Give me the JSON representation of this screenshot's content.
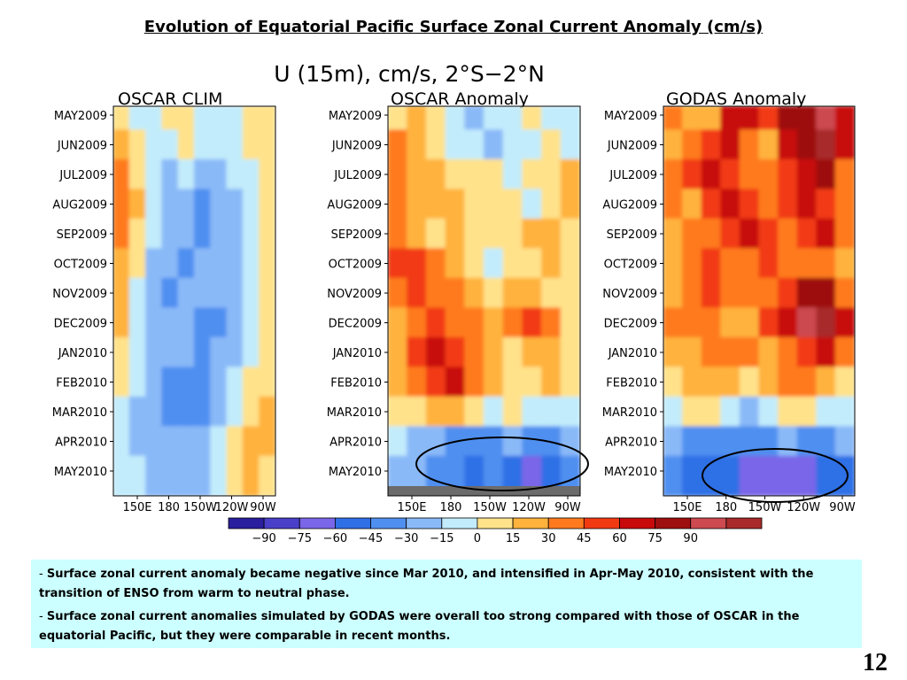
{
  "slide": {
    "title": "Evolution of Equatorial Pacific Surface Zonal Current Anomaly (cm/s)",
    "page_number": "12"
  },
  "notes": [
    {
      "dash": "- ",
      "text": "Surface zonal current anomaly became negative since Mar 2010, and intensified in Apr-May 2010, consistent with the transition of ENSO from warm to neutral phase."
    },
    {
      "dash": "- ",
      "text": "Surface zonal current anomalies simulated by GODAS were overall too strong compared with those of OSCAR in the equatorial Pacific, but they were comparable in recent months."
    }
  ],
  "chart_data": {
    "type": "heatmap",
    "title": "U (15m), cm/s, 2°S−2°N",
    "panels": [
      {
        "title": "OSCAR CLIM"
      },
      {
        "title": "OSCAR Anomaly",
        "annotation": "ellipse around Apr–May 2010 negative anomaly"
      },
      {
        "title": "GODAS Anomaly",
        "annotation": "ellipse around Apr–May 2010 negative anomaly"
      }
    ],
    "y_tick_labels": [
      "MAY2009",
      "JUN2009",
      "JUL2009",
      "AUG2009",
      "SEP2009",
      "OCT2009",
      "NOV2009",
      "DEC2009",
      "JAN2010",
      "FEB2010",
      "MAR2010",
      "APR2010",
      "MAY2010"
    ],
    "x_tick_labels": [
      "150E",
      "180",
      "150W",
      "120W",
      "90W"
    ],
    "colorbar": {
      "levels": [
        -90,
        -75,
        -60,
        -45,
        -30,
        -15,
        0,
        15,
        30,
        45,
        60,
        75,
        90
      ],
      "colors": [
        "#2a1f9e",
        "#4a3fc8",
        "#7a66e8",
        "#2f6fe6",
        "#4f8ff0",
        "#8ab9f8",
        "#c2ecfb",
        "#ffe28a",
        "#ffb23c",
        "#ff7a1f",
        "#f23a12",
        "#c80a0a",
        "#9e0f0f",
        "#cc4a50",
        "#a82a2a"
      ]
    },
    "heat_colors": {
      "-6": "#2a1f9e",
      "-5": "#4a3fc8",
      "-4": "#7a66e8",
      "-3": "#2f6fe6",
      "-2": "#4f8ff0",
      "-1": "#8ab9f8",
      "0": "#c2ecfb",
      "1": "#ffe28a",
      "2": "#ffb23c",
      "3": "#ff7a1f",
      "4": "#f23a12",
      "5": "#c80a0a",
      "6": "#9e0f0f",
      "7": "#cc4a50",
      "8": "#a82a2a"
    },
    "grid_levels": [
      [
        [
          1,
          0,
          0,
          1,
          1,
          0,
          0,
          0,
          1,
          1
        ],
        [
          2,
          1,
          0,
          0,
          1,
          0,
          0,
          0,
          1,
          1
        ],
        [
          3,
          1,
          0,
          -1,
          0,
          -1,
          -1,
          0,
          0,
          1
        ],
        [
          3,
          2,
          0,
          -1,
          -1,
          -2,
          -1,
          -1,
          0,
          1
        ],
        [
          3,
          1,
          0,
          -1,
          -1,
          -2,
          -1,
          -1,
          0,
          1
        ],
        [
          2,
          1,
          -1,
          -1,
          -2,
          -1,
          -1,
          -1,
          0,
          1
        ],
        [
          2,
          0,
          -1,
          -2,
          -1,
          -1,
          -1,
          -1,
          0,
          1
        ],
        [
          2,
          0,
          -1,
          -1,
          -1,
          -2,
          -2,
          -1,
          0,
          1
        ],
        [
          1,
          0,
          -1,
          -1,
          -1,
          -2,
          -1,
          -1,
          0,
          1
        ],
        [
          1,
          0,
          -1,
          -2,
          -2,
          -2,
          -1,
          0,
          1,
          1
        ],
        [
          0,
          -1,
          -1,
          -2,
          -2,
          -2,
          -1,
          0,
          1,
          2
        ],
        [
          0,
          -1,
          -1,
          -1,
          -1,
          -1,
          0,
          1,
          2,
          2
        ],
        [
          0,
          0,
          -1,
          -1,
          -1,
          -1,
          0,
          1,
          2,
          1
        ]
      ],
      [
        [
          1,
          2,
          1,
          0,
          -1,
          0,
          0,
          1,
          0,
          0
        ],
        [
          3,
          2,
          1,
          0,
          0,
          -1,
          0,
          0,
          1,
          0
        ],
        [
          3,
          2,
          2,
          1,
          1,
          1,
          0,
          1,
          1,
          2
        ],
        [
          3,
          2,
          2,
          2,
          1,
          1,
          1,
          0,
          1,
          2
        ],
        [
          3,
          2,
          1,
          2,
          1,
          1,
          1,
          2,
          2,
          1
        ],
        [
          4,
          4,
          3,
          2,
          1,
          0,
          1,
          1,
          2,
          1
        ],
        [
          3,
          4,
          3,
          3,
          2,
          1,
          2,
          2,
          1,
          1
        ],
        [
          2,
          3,
          4,
          3,
          3,
          2,
          3,
          4,
          3,
          1
        ],
        [
          2,
          4,
          5,
          4,
          3,
          2,
          1,
          2,
          2,
          1
        ],
        [
          2,
          3,
          4,
          5,
          3,
          2,
          1,
          1,
          2,
          1
        ],
        [
          1,
          1,
          2,
          2,
          1,
          0,
          1,
          0,
          0,
          0
        ],
        [
          0,
          -1,
          -1,
          -2,
          -2,
          -2,
          -1,
          -2,
          -2,
          -1
        ],
        [
          -1,
          -1,
          -2,
          -2,
          -3,
          -2,
          -3,
          -4,
          -3,
          -2
        ]
      ],
      [
        [
          3,
          2,
          2,
          5,
          5,
          4,
          6,
          6,
          7,
          5
        ],
        [
          2,
          3,
          4,
          5,
          3,
          2,
          5,
          6,
          8,
          5
        ],
        [
          3,
          4,
          5,
          4,
          3,
          3,
          4,
          5,
          6,
          3
        ],
        [
          3,
          2,
          4,
          5,
          4,
          3,
          4,
          5,
          4,
          3
        ],
        [
          2,
          3,
          3,
          4,
          5,
          4,
          3,
          4,
          5,
          3
        ],
        [
          2,
          3,
          4,
          3,
          3,
          4,
          3,
          3,
          3,
          2
        ],
        [
          2,
          3,
          4,
          3,
          3,
          3,
          4,
          6,
          6,
          3
        ],
        [
          3,
          3,
          3,
          2,
          2,
          4,
          5,
          7,
          8,
          5
        ],
        [
          2,
          2,
          3,
          3,
          3,
          2,
          3,
          4,
          5,
          3
        ],
        [
          1,
          2,
          2,
          2,
          1,
          2,
          3,
          3,
          2,
          1
        ],
        [
          0,
          1,
          1,
          0,
          -1,
          0,
          1,
          1,
          0,
          0
        ],
        [
          -1,
          -2,
          -2,
          -2,
          -2,
          -2,
          -1,
          -2,
          -2,
          -1
        ],
        [
          -2,
          -3,
          -3,
          -3,
          -4,
          -4,
          -4,
          -4,
          -3,
          -3
        ]
      ]
    ]
  }
}
